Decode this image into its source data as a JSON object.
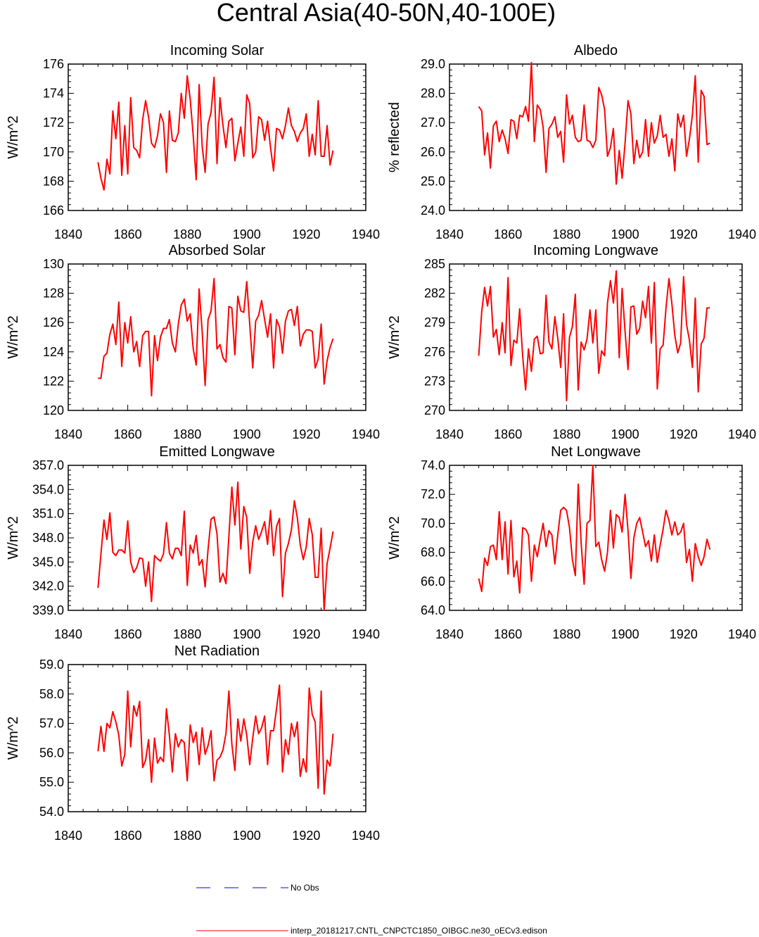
{
  "figure": {
    "title": "Central Asia(40-50N,40-100E)",
    "legend": [
      {
        "label": "No Obs",
        "color": "#0000ff",
        "style": "dashed"
      },
      {
        "label": "interp_20181217.CNTL_CNPCTC1850_OIBGC.ne30_oECv3.edison",
        "color": "#ff0000",
        "style": "solid"
      }
    ]
  },
  "chart_data": [
    {
      "type": "line",
      "title": "Incoming Solar",
      "ylabel": "W/m^2",
      "xlim": [
        1840,
        1940
      ],
      "ylim": [
        166,
        176
      ],
      "xticks": [
        1840,
        1860,
        1880,
        1900,
        1920,
        1940
      ],
      "yticks": [
        166,
        168,
        170,
        172,
        174,
        176
      ],
      "ytick_labels": [
        "166",
        "168",
        "170",
        "172",
        "174",
        "176"
      ],
      "series": [
        {
          "name": "interp_20181217.CNTL_CNPCTC1850_OIBGC.ne30_oECv3.edison",
          "color": "#ff0000",
          "x_start": 1850,
          "values": [
            169.3,
            168.2,
            167.4,
            169.5,
            168.5,
            172.8,
            170.9,
            173.4,
            168.4,
            171.8,
            168.5,
            173.7,
            170.3,
            170.1,
            169.6,
            172.2,
            173.5,
            172.4,
            170.6,
            170.3,
            171.1,
            172.6,
            172.0,
            168.6,
            172.8,
            170.8,
            170.7,
            171.3,
            174.0,
            172.3,
            175.2,
            173.6,
            171.1,
            168.1,
            174.6,
            170.4,
            168.6,
            171.9,
            172.7,
            175.1,
            169.2,
            173.7,
            171.8,
            170.3,
            172.1,
            172.3,
            169.4,
            170.6,
            171.7,
            169.7,
            173.9,
            173.3,
            169.6,
            170.0,
            172.4,
            172.2,
            170.8,
            172.1,
            170.3,
            168.7,
            171.6,
            171.5,
            170.9,
            171.8,
            173.0,
            171.8,
            171.4,
            170.7,
            171.3,
            171.6,
            172.6,
            169.7,
            171.2,
            169.8,
            173.5,
            169.7,
            169.7,
            171.8,
            169.1,
            170.1
          ]
        }
      ]
    },
    {
      "type": "line",
      "title": "Albedo",
      "ylabel": "% reflected",
      "xlim": [
        1840,
        1940
      ],
      "ylim": [
        24,
        29
      ],
      "xticks": [
        1840,
        1860,
        1880,
        1900,
        1920,
        1940
      ],
      "yticks": [
        24,
        25,
        26,
        27,
        28,
        29
      ],
      "ytick_labels": [
        "24.0",
        "25.0",
        "26.0",
        "27.0",
        "28.0",
        "29.0"
      ],
      "series": [
        {
          "name": "interp_20181217.CNTL_CNPCTC1850_OIBGC.ne30_oECv3.edison",
          "color": "#ff0000",
          "x_start": 1850,
          "values": [
            27.55,
            27.4,
            25.9,
            26.65,
            25.45,
            26.9,
            27.05,
            26.35,
            26.75,
            26.45,
            25.95,
            27.1,
            27.05,
            26.45,
            27.25,
            27.2,
            27.55,
            27.05,
            29.05,
            26.35,
            27.6,
            27.45,
            26.85,
            25.3,
            26.8,
            26.95,
            27.2,
            26.5,
            26.7,
            25.65,
            27.95,
            26.95,
            27.25,
            26.5,
            26.35,
            26.4,
            27.6,
            26.4,
            26.35,
            26.15,
            26.4,
            28.2,
            27.95,
            27.45,
            25.85,
            26.15,
            26.8,
            24.9,
            26.05,
            25.1,
            26.3,
            27.75,
            27.3,
            25.6,
            26.4,
            25.8,
            26.0,
            27.1,
            25.85,
            27.0,
            26.3,
            26.55,
            27.25,
            26.5,
            26.6,
            25.85,
            26.45,
            25.35,
            27.3,
            26.85,
            27.25,
            25.85,
            26.45,
            27.25,
            28.6,
            25.65,
            28.1,
            27.9,
            26.25,
            26.3
          ]
        }
      ]
    },
    {
      "type": "line",
      "title": "Absorbed Solar",
      "ylabel": "W/m^2",
      "xlim": [
        1840,
        1940
      ],
      "ylim": [
        120,
        130
      ],
      "xticks": [
        1840,
        1860,
        1880,
        1900,
        1920,
        1940
      ],
      "yticks": [
        120,
        122,
        124,
        126,
        128,
        130
      ],
      "ytick_labels": [
        "120",
        "122",
        "124",
        "126",
        "128",
        "130"
      ],
      "series": [
        {
          "name": "interp_20181217.CNTL_CNPCTC1850_OIBGC.ne30_oECv3.edison",
          "color": "#ff0000",
          "x_start": 1850,
          "values": [
            122.2,
            122.2,
            123.7,
            123.9,
            125.2,
            125.9,
            124.5,
            127.4,
            123.0,
            126.0,
            124.6,
            126.4,
            124.0,
            124.7,
            123.0,
            125.1,
            125.4,
            125.4,
            121.0,
            125.1,
            123.4,
            125.0,
            125.6,
            125.6,
            126.2,
            124.6,
            124.0,
            125.9,
            127.2,
            127.6,
            126.1,
            126.6,
            124.2,
            123.1,
            128.3,
            125.4,
            121.7,
            126.2,
            126.8,
            129.0,
            124.2,
            124.5,
            123.6,
            123.3,
            127.1,
            127.0,
            123.8,
            127.8,
            126.8,
            126.7,
            128.8,
            125.9,
            122.9,
            126.1,
            126.5,
            127.5,
            126.2,
            125.0,
            126.6,
            122.9,
            126.2,
            125.7,
            123.9,
            126.1,
            126.8,
            126.9,
            125.8,
            127.1,
            124.4,
            125.2,
            125.5,
            125.5,
            125.4,
            122.9,
            123.5,
            125.9,
            121.8,
            123.4,
            124.3,
            124.9
          ]
        }
      ]
    },
    {
      "type": "line",
      "title": "Incoming Longwave",
      "ylabel": "W/m^2",
      "xlim": [
        1840,
        1940
      ],
      "ylim": [
        270,
        285
      ],
      "xticks": [
        1840,
        1860,
        1880,
        1900,
        1920,
        1940
      ],
      "yticks": [
        270,
        273,
        276,
        279,
        282,
        285
      ],
      "ytick_labels": [
        "270",
        "273",
        "276",
        "279",
        "282",
        "285"
      ],
      "series": [
        {
          "name": "interp_20181217.CNTL_CNPCTC1850_OIBGC.ne30_oECv3.edison",
          "color": "#ff0000",
          "x_start": 1850,
          "values": [
            275.6,
            280.1,
            282.6,
            280.7,
            282.7,
            277.5,
            278.3,
            275.7,
            279.0,
            275.9,
            283.6,
            274.6,
            277.2,
            276.9,
            280.4,
            275.6,
            272.1,
            276.3,
            274.0,
            277.3,
            277.6,
            275.8,
            275.9,
            281.8,
            277.0,
            276.3,
            279.6,
            277.4,
            274.4,
            279.9,
            271.0,
            277.5,
            278.6,
            281.9,
            272.1,
            277.0,
            276.2,
            277.3,
            280.3,
            276.9,
            280.3,
            273.8,
            276.1,
            275.6,
            281.0,
            283.3,
            281.0,
            284.3,
            275.4,
            282.5,
            278.1,
            274.2,
            280.6,
            280.7,
            277.8,
            278.4,
            281.2,
            279.5,
            282.7,
            276.9,
            283.1,
            272.2,
            276.3,
            276.7,
            280.5,
            283.5,
            280.9,
            277.7,
            275.9,
            276.9,
            283.7,
            278.8,
            277.2,
            274.4,
            281.5,
            271.9,
            276.8,
            277.4,
            280.5,
            280.5
          ]
        }
      ]
    },
    {
      "type": "line",
      "title": "Emitted Longwave",
      "ylabel": "W/m^2",
      "xlim": [
        1840,
        1940
      ],
      "ylim": [
        339,
        357
      ],
      "xticks": [
        1840,
        1860,
        1880,
        1900,
        1920,
        1940
      ],
      "yticks": [
        339,
        342,
        345,
        348,
        351,
        354,
        357
      ],
      "ytick_labels": [
        "339.0",
        "342.0",
        "345.0",
        "348.0",
        "351.0",
        "354.0",
        "357.0"
      ],
      "series": [
        {
          "name": "interp_20181217.CNTL_CNPCTC1850_OIBGC.ne30_oECv3.edison",
          "color": "#ff0000",
          "x_start": 1850,
          "values": [
            341.8,
            346.0,
            350.2,
            347.8,
            351.1,
            346.2,
            345.8,
            346.5,
            346.5,
            346.1,
            350.1,
            345.0,
            343.7,
            344.3,
            345.5,
            345.4,
            342.0,
            345.0,
            340.1,
            345.8,
            345.4,
            345.1,
            346.0,
            349.9,
            346.1,
            345.4,
            346.7,
            346.7,
            345.8,
            351.3,
            342.1,
            347.1,
            346.1,
            348.3,
            344.6,
            345.3,
            341.9,
            346.6,
            350.3,
            350.6,
            348.5,
            342.5,
            343.6,
            342.3,
            348.2,
            354.3,
            349.6,
            354.9,
            346.6,
            351.9,
            350.5,
            343.6,
            347.5,
            349.5,
            347.8,
            348.8,
            350.0,
            347.2,
            351.4,
            345.8,
            349.4,
            350.4,
            340.7,
            346.1,
            347.3,
            349.0,
            352.6,
            350.5,
            347.1,
            345.3,
            346.9,
            350.4,
            348.4,
            343.1,
            343.1,
            349.2,
            339.0,
            344.8,
            346.7,
            348.8
          ]
        }
      ]
    },
    {
      "type": "line",
      "title": "Net Longwave",
      "ylabel": "W/m^2",
      "xlim": [
        1840,
        1940
      ],
      "ylim": [
        64,
        74
      ],
      "xticks": [
        1840,
        1860,
        1880,
        1900,
        1920,
        1940
      ],
      "yticks": [
        64,
        66,
        68,
        70,
        72,
        74
      ],
      "ytick_labels": [
        "64.0",
        "66.0",
        "68.0",
        "70.0",
        "72.0",
        "74.0"
      ],
      "series": [
        {
          "name": "interp_20181217.CNTL_CNPCTC1850_OIBGC.ne30_oECv3.edison",
          "color": "#ff0000",
          "x_start": 1850,
          "values": [
            66.2,
            65.3,
            67.6,
            67.1,
            68.4,
            68.5,
            67.5,
            70.8,
            67.5,
            70.1,
            66.5,
            70.2,
            66.3,
            67.4,
            65.2,
            69.7,
            69.6,
            69.2,
            66.0,
            68.5,
            67.7,
            68.9,
            70.0,
            68.4,
            69.5,
            69.2,
            67.2,
            69.2,
            70.9,
            71.1,
            70.9,
            69.7,
            67.5,
            66.4,
            72.7,
            68.6,
            65.8,
            70.0,
            70.2,
            74.0,
            68.4,
            68.7,
            67.5,
            66.7,
            68.0,
            70.9,
            68.3,
            70.6,
            70.4,
            69.4,
            72.0,
            69.5,
            66.2,
            69.0,
            70.0,
            70.4,
            69.4,
            68.4,
            68.8,
            67.4,
            69.2,
            67.3,
            68.5,
            69.6,
            70.9,
            70.2,
            69.2,
            70.1,
            69.2,
            69.4,
            70.0,
            67.3,
            68.2,
            66.0,
            68.6,
            67.7,
            67.1,
            67.7,
            68.9,
            68.2
          ]
        }
      ]
    },
    {
      "type": "line",
      "title": "Net Radiation",
      "ylabel": "W/m^2",
      "xlim": [
        1840,
        1940
      ],
      "ylim": [
        54,
        59
      ],
      "xticks": [
        1840,
        1860,
        1880,
        1900,
        1920,
        1940
      ],
      "yticks": [
        54,
        55,
        56,
        57,
        58,
        59
      ],
      "ytick_labels": [
        "54.0",
        "55.0",
        "56.0",
        "57.0",
        "58.0",
        "59.0"
      ],
      "series": [
        {
          "name": "interp_20181217.CNTL_CNPCTC1850_OIBGC.ne30_oECv3.edison",
          "color": "#ff0000",
          "x_start": 1850,
          "values": [
            56.05,
            56.9,
            56.05,
            57.0,
            56.85,
            57.4,
            57.05,
            56.6,
            55.55,
            55.95,
            58.1,
            56.2,
            57.6,
            57.25,
            57.75,
            55.5,
            55.75,
            56.45,
            55.0,
            56.5,
            55.65,
            55.85,
            55.7,
            57.5,
            56.6,
            55.35,
            56.65,
            56.2,
            56.45,
            56.35,
            55.05,
            56.95,
            56.35,
            56.7,
            55.6,
            56.85,
            55.95,
            56.25,
            56.75,
            55.05,
            55.75,
            55.85,
            56.1,
            56.65,
            58.1,
            56.3,
            55.4,
            57.15,
            56.4,
            57.15,
            56.6,
            55.6,
            56.5,
            57.25,
            56.65,
            56.85,
            57.25,
            55.6,
            56.75,
            56.75,
            57.5,
            58.3,
            55.35,
            56.45,
            55.95,
            57.0,
            56.55,
            57.05,
            55.2,
            55.8,
            55.35,
            58.2,
            57.3,
            57.05,
            54.8,
            58.1,
            54.6,
            55.75,
            55.55,
            56.65
          ]
        }
      ]
    }
  ]
}
